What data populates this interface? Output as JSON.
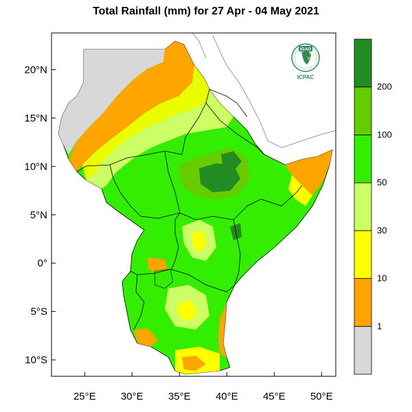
{
  "title": "Total Rainfall (mm) for 27 Apr - 04 May 2021",
  "map": {
    "lat_labels": [
      "20°N",
      "15°N",
      "10°N",
      "5°N",
      "0°",
      "5°S",
      "10°S"
    ],
    "lon_labels": [
      "25°E",
      "30°E",
      "35°E",
      "40°E",
      "45°E",
      "50°E"
    ],
    "lat_values": [
      20,
      15,
      10,
      5,
      0,
      -5,
      -10
    ],
    "lon_values": [
      25,
      30,
      35,
      40,
      45,
      50
    ],
    "extent": {
      "lon_min": 21.5,
      "lon_max": 51.5,
      "lat_min": -11.7,
      "lat_max": 23.8
    }
  },
  "logo": {
    "top_text": "IGAD",
    "bottom_text": "ICPAC"
  },
  "colorbar": {
    "labels": [
      "1",
      "10",
      "30",
      "50",
      "100",
      "200"
    ],
    "bins": [
      {
        "color": "#d8d8d8"
      },
      {
        "color": "#ffa500"
      },
      {
        "color": "#ffff00"
      },
      {
        "color": "#ccff66"
      },
      {
        "color": "#33ee00"
      },
      {
        "color": "#66cc00"
      },
      {
        "color": "#228b22"
      }
    ]
  }
}
